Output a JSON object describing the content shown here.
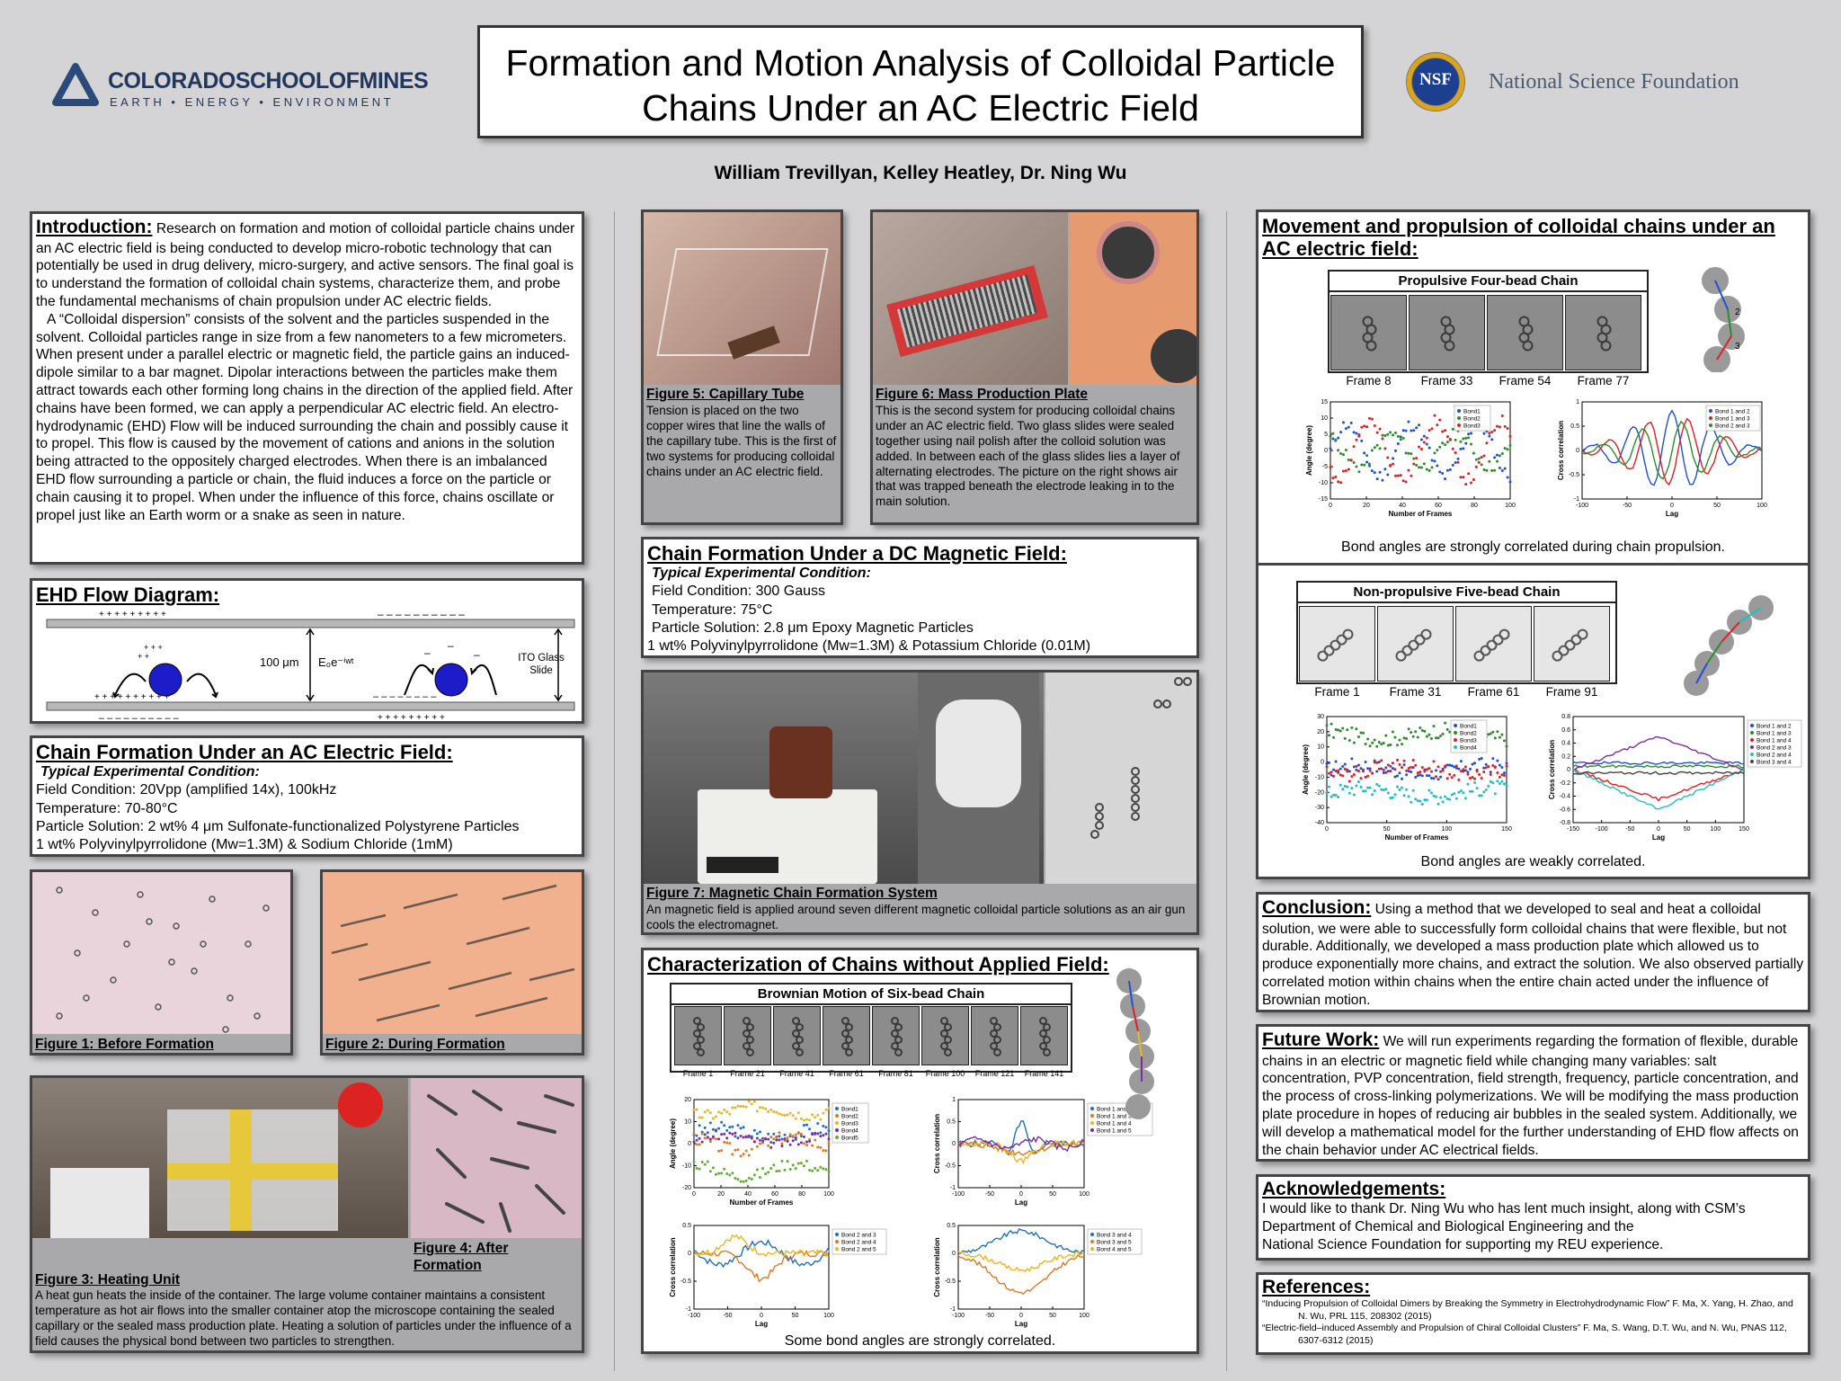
{
  "header": {
    "title_line1": "Formation and Motion Analysis of Colloidal Particle",
    "title_line2": "Chains Under an AC Electric Field",
    "authors": "William Trevillyan, Kelley Heatley, Dr. Ning Wu",
    "mines_logo_text": "COLORADOSCHOOLOFMINES",
    "mines_logo_sub": "EARTH • ENERGY • ENVIRONMENT",
    "nsf_logo_text": "NSF",
    "nsf_text": "National Science Foundation"
  },
  "intro": {
    "heading": "Introduction:",
    "p1": "Research on formation and motion of colloidal particle chains under an AC electric field is being conducted to develop micro-robotic technology that can potentially be used in drug delivery, micro-surgery, and active sensors. The final goal is to understand the formation of colloidal chain systems, characterize them, and probe the fundamental mechanisms of chain propulsion under AC electric fields.",
    "p2": "A “Colloidal dispersion” consists of the solvent and the particles suspended in the solvent. Colloidal particles range in size from a few nanometers to a few micrometers. When present under a parallel electric or magnetic field, the particle gains an induced-dipole similar to a bar magnet. Dipolar interactions between the particles make them attract towards each other forming long chains in the direction of the applied field. After chains have been formed, we can apply a perpendicular AC electric field. An electro-hydrodynamic (EHD) Flow will be induced surrounding the chain and possibly cause it to propel. This flow is caused by the movement of cations and anions in the solution being attracted to the oppositely charged electrodes. When there is an imbalanced EHD flow surrounding a particle or chain, the fluid induces a force on the particle or chain causing it to propel. When under the influence of this force, chains oscillate or propel just like an Earth worm or a snake as seen in nature."
  },
  "ehd": {
    "heading": "EHD Flow Diagram:",
    "gap_label": "100 μm",
    "field_label": "E₀e⁻ⁱʷᵗ",
    "ito_label": "ITO Glass Slide",
    "top_plus": "+ + +     + + +     + + +",
    "top_minus": "–  –  –   –  –  –  –  –  –  –",
    "bottom_left": "+ + + + + + + + + +",
    "bottom_left_minus": "–  –  –  –  –  –  –  –  –  –",
    "bottom_right": "+ + +    + + +    + + +",
    "bottom_right_minus": "–  –  –  –  –  –  –  –"
  },
  "ac": {
    "heading": "Chain Formation Under an AC Electric Field:",
    "cond_title": "Typical Experimental Condition:",
    "l1": "Field Condition: 20Vpp (amplified 14x), 100kHz",
    "l2": "Temperature: 70-80°C",
    "l3": "Particle Solution: 2 wt% 4 μm Sulfonate-functionalized Polystyrene Particles",
    "l4": "1 wt% Polyvinylpyrrolidone (Mw=1.3M) & Sodium Chloride (1mM)"
  },
  "fig1": {
    "title": "Figure 1: Before Formation"
  },
  "fig2": {
    "title": "Figure 2: During Formation"
  },
  "fig3": {
    "title": "Figure 3: Heating Unit",
    "text": "A heat gun heats the inside of the container. The large volume container maintains a consistent temperature as hot air flows into the smaller container atop the microscope containing the sealed capillary or the sealed mass production plate.  Heating a solution of particles under the influence of a field causes the physical bond between two particles to strengthen."
  },
  "fig4": {
    "title": "Figure 4: After Formation"
  },
  "fig5": {
    "title": "Figure 5: Capillary Tube",
    "text": "Tension is placed on the two copper wires that line the walls of the capillary tube. This is the first of two systems for producing colloidal chains under an AC electric field."
  },
  "fig6": {
    "title": "Figure 6: Mass Production Plate",
    "text": "This is the second system for producing colloidal chains under an AC electric field. Two glass slides were sealed together using nail polish after the colloid solution was added. In between each of the glass slides lies a layer of alternating electrodes.  The picture on the right shows air that was trapped beneath the electrode leaking in to the main solution."
  },
  "dc": {
    "heading": "Chain Formation Under a DC Magnetic Field:",
    "cond_title": "Typical Experimental Condition:",
    "l1": "Field Condition: 300 Gauss",
    "l2": "Temperature: 75°C",
    "l3": "Particle Solution: 2.8 μm Epoxy Magnetic Particles",
    "l4": "1 wt% Polyvinylpyrrolidone (Mw=1.3M) & Potassium Chloride (0.01M)"
  },
  "fig7": {
    "title": "Figure 7: Magnetic Chain Formation System",
    "text": "An magnetic field is applied around seven different magnetic colloidal particle solutions as an air gun cools the electromagnet."
  },
  "brown": {
    "heading": "Characterization of Chains without Applied Field:",
    "box_title": "Brownian Motion of Six-bead Chain",
    "frames": [
      "Frame 1",
      "Frame 21",
      "Frame 41",
      "Frame 61",
      "Frame 81",
      "Frame 100",
      "Frame 121",
      "Frame 141"
    ],
    "angle_ylabel": "Angle (degree)",
    "angle_xlabel": "Number of Frames",
    "cc_ylabel": "Cross correlation",
    "lag_label": "Lag",
    "legend_a": [
      "Bond1",
      "Bond2",
      "Bond3",
      "Bond4",
      "Bond5"
    ],
    "legend_b": [
      "Bond 1 and 2",
      "Bond 1 and 3",
      "Bond 1 and 4",
      "Bond 1 and 5"
    ],
    "legend_c": [
      "Bond 2 and 3",
      "Bond 2 and 4",
      "Bond 2 and 5"
    ],
    "legend_d": [
      "Bond 3 and 4",
      "Bond 3 and 5",
      "Bond 4 and 5"
    ],
    "caption": "Some bond angles are strongly correlated."
  },
  "move": {
    "heading": "Movement and propulsion of colloidal chains under an AC electric field:",
    "four_title": "Propulsive Four-bead Chain",
    "four_frames": [
      "Frame 8",
      "Frame 33",
      "Frame 54",
      "Frame 77"
    ],
    "four_legend_a": [
      "Bond1",
      "Bond2",
      "Bond3"
    ],
    "four_legend_b": [
      "Bond 1 and 2",
      "Bond 1 and 3",
      "Bond 2 and 3"
    ],
    "four_caption": "Bond angles are strongly correlated during chain propulsion.",
    "five_title": "Non-propulsive Five-bead Chain",
    "five_frames": [
      "Frame 1",
      "Frame 31",
      "Frame 61",
      "Frame 91"
    ],
    "five_legend_a": [
      "Bond1",
      "Bond2",
      "Bond3",
      "Bond4"
    ],
    "five_legend_b": [
      "Bond 1 and 2",
      "Bond 1 and 3",
      "Bond 1 and 4",
      "Bond 2 and 3",
      "Bond 2 and 4",
      "Bond 3 and 4"
    ],
    "five_caption": "Bond angles are weakly correlated.",
    "bead_labels": [
      "1",
      "2",
      "3"
    ]
  },
  "conclusion": {
    "heading": "Conclusion:",
    "text": "Using a method that we developed to seal and heat a colloidal solution, we were able to successfully form colloidal chains that were flexible, but not durable.  Additionally, we developed a mass production plate which allowed us to produce exponentially more chains, and extract the solution. We also observed partially correlated motion within chains when the entire chain acted under the influence of Brownian motion."
  },
  "future": {
    "heading": "Future Work:",
    "text": "We will run experiments regarding the formation of flexible, durable chains in an electric or magnetic field while changing many variables: salt concentration, PVP concentration, field strength, frequency, particle concentration, and the process of cross-linking polymerizations. We will be modifying the mass production plate procedure in hopes of reducing air bubbles in the sealed system. Additionally, we will develop a mathematical model for the further understanding of EHD flow affects on the chain behavior under AC electrical fields."
  },
  "ack": {
    "heading": "Acknowledgements:",
    "l1": "I would like to thank Dr. Ning Wu who has lent much insight, along with CSM’s",
    "l2": "Department of Chemical and Biological Engineering and the",
    "l3": "National Science Foundation for supporting my REU experience."
  },
  "refs": {
    "heading": "References:",
    "r1": "“Inducing Propulsion of Colloidal Dimers by Breaking the Symmetry in Electrohydrodynamic Flow” F. Ma, X. Yang, H. Zhao, and",
    "r1b": "N. Wu, PRL 115, 208302 (2015)",
    "r2": "“Electric-field–induced Assembly and Propulsion of Chiral Colloidal Clusters” F. Ma, S. Wang, D.T. Wu, and N. Wu, PNAS 112,",
    "r2b": "6307-6312 (2015)"
  },
  "colors": {
    "bond1": "#1f4fd8",
    "bond2": "#2e8b2e",
    "bond3": "#e02020",
    "bond4": "#7a2ea0",
    "bond5": "#60b030",
    "c_orange": "#e07a20",
    "c_yellow": "#e8b820",
    "c_blue": "#2070c0"
  }
}
